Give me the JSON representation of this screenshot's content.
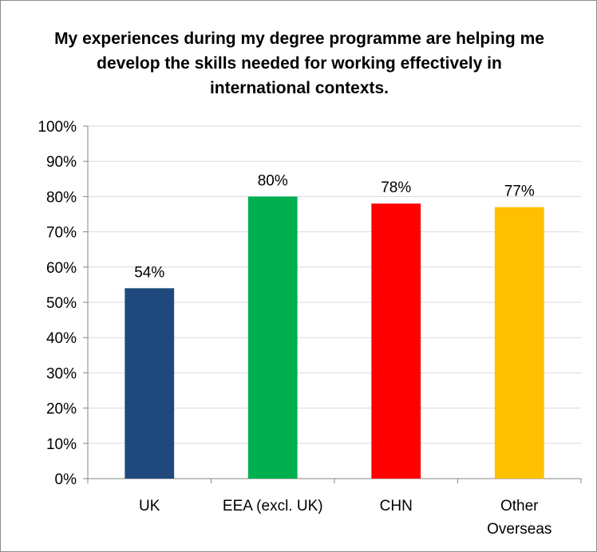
{
  "chart_data": {
    "type": "bar",
    "title": "My experiences during my degree programme are helping me develop the skills needed for working effectively in international contexts.",
    "categories": [
      "UK",
      "EEA (excl. UK)",
      "CHN",
      "Other Overseas"
    ],
    "category_lines": [
      [
        "UK"
      ],
      [
        "EEA (excl. UK)"
      ],
      [
        "CHN"
      ],
      [
        "Other",
        "Overseas"
      ]
    ],
    "values": [
      54,
      80,
      78,
      77
    ],
    "data_labels": [
      "54%",
      "80%",
      "78%",
      "77%"
    ],
    "colors": [
      "#1f497d",
      "#00b050",
      "#ff0000",
      "#ffc000"
    ],
    "ylim": [
      0,
      100
    ],
    "yticks": [
      0,
      10,
      20,
      30,
      40,
      50,
      60,
      70,
      80,
      90,
      100
    ],
    "ytick_labels": [
      "0%",
      "10%",
      "20%",
      "30%",
      "40%",
      "50%",
      "60%",
      "70%",
      "80%",
      "90%",
      "100%"
    ],
    "gridlines": true,
    "gridline_color": "#d9d9d9",
    "legend": "none"
  }
}
